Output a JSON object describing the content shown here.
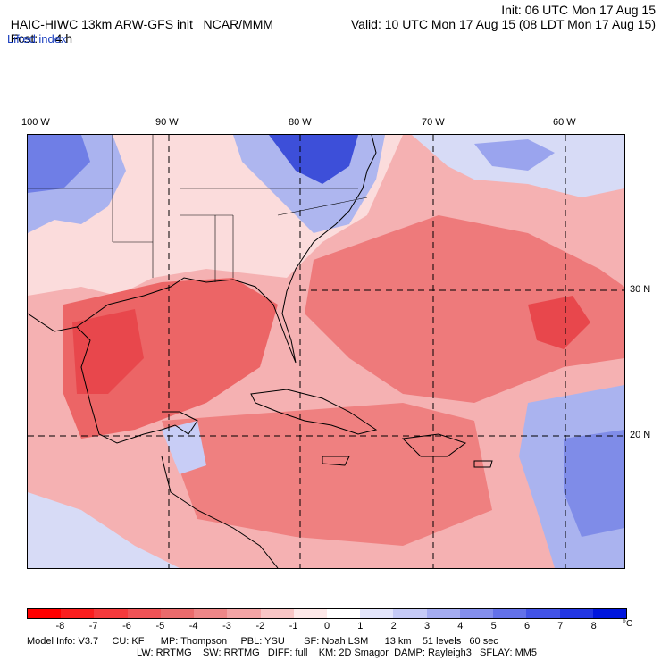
{
  "header": {
    "model_title": "HAIC-HIWC 13km ARW-GFS init",
    "org": "NCAR/MMM",
    "init": "Init: 06 UTC Mon 17 Aug 15",
    "fcst_label": "Fcst:",
    "fcst_value": "4 h",
    "valid": "Valid: 10 UTC Mon 17 Aug 15 (08 LDT Mon 17 Aug 15)",
    "field_name": "Lifted index"
  },
  "map": {
    "lon_labels": [
      "100 W",
      "90 W",
      "80 W",
      "70 W",
      "60 W"
    ],
    "lat_labels": [
      "30 N",
      "20 N"
    ],
    "colors": {
      "warm_strong": "#e8474c",
      "warm_mid": "#f07a7b",
      "warm_light": "#f6b3b3",
      "warm_pale": "#fbd9d9",
      "cool_pale": "#e4e6f8",
      "cool_light": "#aeb6ef",
      "cool_mid": "#6c7be6",
      "cool_strong": "#2f3fd6"
    }
  },
  "colorbar": {
    "ticks": [
      "-8",
      "-7",
      "-6",
      "-5",
      "-4",
      "-3",
      "-2",
      "-1",
      "0",
      "1",
      "2",
      "3",
      "4",
      "5",
      "6",
      "7",
      "8"
    ],
    "unit": "°C",
    "colors": [
      "#ff0000",
      "#fa1e1e",
      "#f53a3c",
      "#f05356",
      "#ea6b6c",
      "#ee8788",
      "#f3a4a5",
      "#f8c5c5",
      "#fde8e8",
      "#ffffff",
      "#e3e5fb",
      "#c5caf6",
      "#a4acf1",
      "#848fed",
      "#6371e9",
      "#4253e6",
      "#2236e3",
      "#0016dd"
    ]
  },
  "footer": {
    "line1": "Model Info: V3.7     CU: KF      MP: Thompson     PBL: YSU       SF: Noah LSM      13 km    51 levels   60 sec",
    "line2": "LW: RRTMG    SW: RRTMG   DIFF: full    KM: 2D Smagor  DAMP: Rayleigh3   SFLAY: MM5"
  }
}
